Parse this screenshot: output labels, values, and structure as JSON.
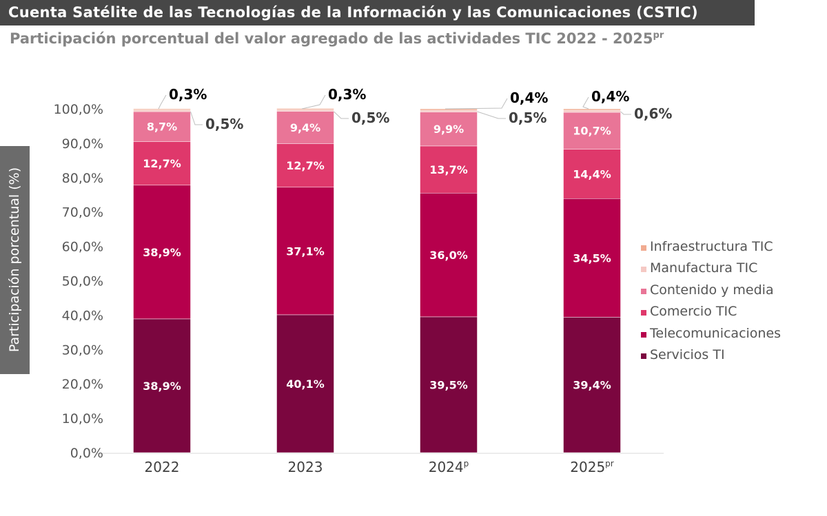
{
  "title": "Cuenta Satélite de las Tecnologías de la Información y las Comunicaciones (CSTIC)",
  "subtitle": {
    "text": "Participación porcentual del valor agregado de las actividades TIC 2022 - 2025",
    "sup": "pr"
  },
  "chart_data": {
    "type": "bar",
    "stacked": true,
    "ylabel": "Participación porcentual (%)",
    "ylim": [
      0,
      100
    ],
    "yticks": [
      "0,0%",
      "10,0%",
      "20,0%",
      "30,0%",
      "40,0%",
      "50,0%",
      "60,0%",
      "70,0%",
      "80,0%",
      "90,0%",
      "100,0%"
    ],
    "categories": [
      {
        "label": "2022",
        "sup": ""
      },
      {
        "label": "2023",
        "sup": ""
      },
      {
        "label": "2024",
        "sup": "p"
      },
      {
        "label": "2025",
        "sup": "pr"
      }
    ],
    "series": [
      {
        "name": "Servicios TI",
        "color": "#7b063f",
        "values": [
          38.9,
          40.1,
          39.5,
          39.4
        ],
        "labels": [
          "38,9%",
          "40,1%",
          "39,5%",
          "39,4%"
        ]
      },
      {
        "name": "Telecomunicaciones",
        "color": "#b6004c",
        "values": [
          38.9,
          37.1,
          36.0,
          34.5
        ],
        "labels": [
          "38,9%",
          "37,1%",
          "36,0%",
          "34,5%"
        ]
      },
      {
        "name": "Comercio TIC",
        "color": "#df386b",
        "values": [
          12.7,
          12.7,
          13.7,
          14.4
        ],
        "labels": [
          "12,7%",
          "12,7%",
          "13,7%",
          "14,4%"
        ]
      },
      {
        "name": "Contenido y media",
        "color": "#e97597",
        "values": [
          8.7,
          9.4,
          9.9,
          10.7
        ],
        "labels": [
          "8,7%",
          "9,4%",
          "9,9%",
          "10,7%"
        ]
      },
      {
        "name": "Manufactura TIC",
        "color": "#f5c9c4",
        "values": [
          0.5,
          0.5,
          0.5,
          0.6
        ],
        "labels": [
          "0,5%",
          "0,5%",
          "0,5%",
          "0,6%"
        ]
      },
      {
        "name": "Infraestructura TIC",
        "color": "#f1ab91",
        "values": [
          0.3,
          0.3,
          0.4,
          0.4
        ],
        "labels": [
          "0,3%",
          "0,3%",
          "0,4%",
          "0,4%"
        ]
      }
    ],
    "legend": "right",
    "grid": false
  }
}
